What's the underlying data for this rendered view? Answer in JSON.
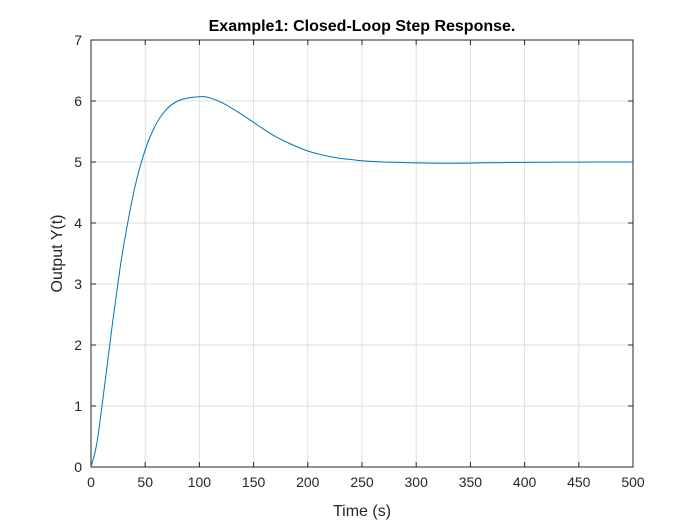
{
  "chart_data": {
    "type": "line",
    "title": "Example1: Closed-Loop Step Response.",
    "xlabel": "Time (s)",
    "ylabel": "Output Y(t)",
    "xlim": [
      0,
      500
    ],
    "ylim": [
      0,
      7
    ],
    "x_ticks": [
      0,
      50,
      100,
      150,
      200,
      250,
      300,
      350,
      400,
      450,
      500
    ],
    "y_ticks": [
      0,
      1,
      2,
      3,
      4,
      5,
      6,
      7
    ],
    "grid": true,
    "line_color": "#0072bd",
    "series": [
      {
        "x": [
          0,
          5,
          10,
          15,
          20,
          25,
          30,
          40,
          50,
          60,
          70,
          80,
          90,
          100,
          105,
          110,
          120,
          130,
          140,
          150,
          160,
          170,
          180,
          190,
          200,
          210,
          220,
          230,
          240,
          250,
          260,
          270,
          280,
          290,
          300,
          320,
          340,
          360,
          380,
          400,
          425,
          450,
          475,
          500
        ],
        "values": [
          0,
          0.35,
          0.98,
          1.68,
          2.38,
          3.03,
          3.62,
          4.55,
          5.2,
          5.62,
          5.87,
          6.0,
          6.05,
          6.07,
          6.07,
          6.05,
          5.98,
          5.88,
          5.77,
          5.65,
          5.53,
          5.42,
          5.33,
          5.25,
          5.18,
          5.13,
          5.09,
          5.06,
          5.04,
          5.02,
          5.01,
          5.0,
          4.995,
          4.99,
          4.985,
          4.98,
          4.98,
          4.985,
          4.99,
          4.993,
          4.996,
          4.998,
          5.0,
          5.0
        ]
      }
    ]
  }
}
